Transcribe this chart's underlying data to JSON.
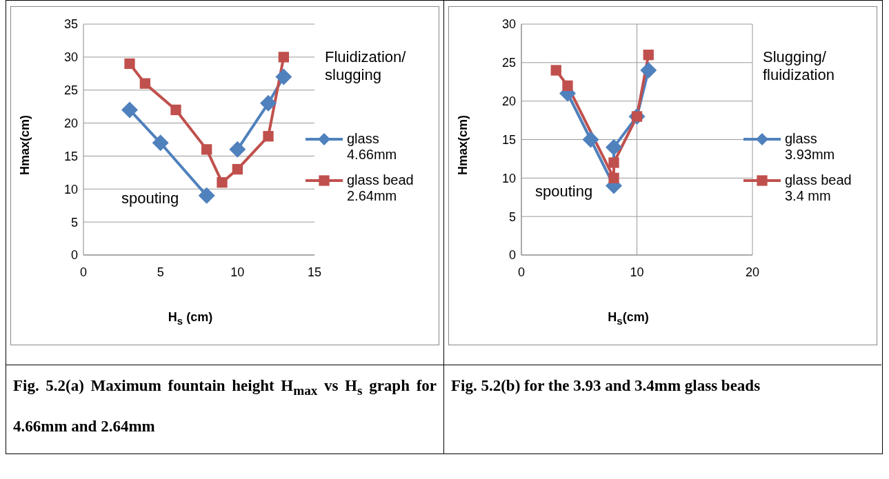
{
  "chart_data": [
    {
      "type": "line",
      "title": "Fig. 5.2(a) Maximum fountain height H$_{max}$ vs H$_{s}$ graph for 4.66mm and 2.64mm",
      "xlabel": "H$_{s}$ (cm)",
      "ylabel": "Hmax(cm)",
      "xlim": [
        0,
        15
      ],
      "xticks": [
        0,
        5,
        10,
        15
      ],
      "ylim": [
        0,
        35
      ],
      "yticks": [
        0,
        5,
        10,
        15,
        20,
        25,
        30,
        35
      ],
      "grid": "y",
      "legend": "right",
      "annotations": [
        "Fluidization/ slugging",
        "spouting"
      ],
      "series": [
        {
          "name": "glass 4.66mm",
          "color": "#4f81bd",
          "marker": "diamond",
          "x": [
            3,
            5,
            8,
            9,
            10,
            12,
            13
          ],
          "values": [
            22,
            17,
            9,
            null,
            16,
            23,
            27
          ]
        },
        {
          "name": "glass bead 2.64mm",
          "color": "#c0504d",
          "marker": "square",
          "x": [
            3,
            4,
            6,
            8,
            9,
            10,
            12,
            13
          ],
          "values": [
            29,
            26,
            22,
            16,
            11,
            13,
            18,
            30
          ]
        }
      ]
    },
    {
      "type": "line",
      "title": "Fig. 5.2(b) for the 3.93 and 3.4mm glass beads",
      "xlabel": "H$_{s}$(cm)",
      "ylabel": "Hmax(cm)",
      "xlim": [
        0,
        20
      ],
      "xticks": [
        0,
        10,
        20
      ],
      "ylim": [
        0,
        30
      ],
      "yticks": [
        0,
        5,
        10,
        15,
        20,
        25,
        30
      ],
      "grid": true,
      "legend": "right",
      "annotations": [
        "Slugging/ fluidization",
        "spouting"
      ],
      "series": [
        {
          "name": "glass 3.93mm",
          "color": "#4f81bd",
          "marker": "diamond",
          "x": [
            4,
            6,
            8,
            8,
            10,
            11
          ],
          "values": [
            21,
            15,
            9,
            14,
            18,
            24
          ]
        },
        {
          "name": "glass bead 3.4 mm",
          "color": "#c0504d",
          "marker": "square",
          "x": [
            3,
            4,
            8,
            8,
            10,
            11
          ],
          "values": [
            24,
            22,
            10,
            12,
            18,
            26
          ]
        }
      ]
    }
  ]
}
